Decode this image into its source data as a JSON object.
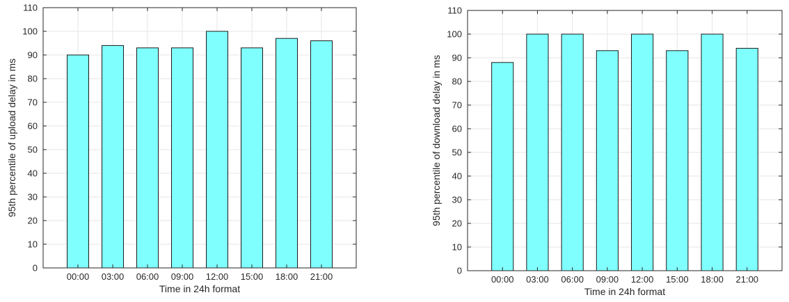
{
  "chart_data": [
    {
      "type": "bar",
      "categories": [
        "00:00",
        "03:00",
        "06:00",
        "09:00",
        "12:00",
        "15:00",
        "18:00",
        "21:00"
      ],
      "values": [
        90,
        94,
        93,
        93,
        100,
        93,
        97,
        96
      ],
      "xlabel": "Time in 24h format",
      "ylabel": "95th percentile of upload delay in ms",
      "ylim": [
        0,
        110
      ],
      "yticks": [
        0,
        10,
        20,
        30,
        40,
        50,
        60,
        70,
        80,
        90,
        100,
        110
      ],
      "grid": true,
      "bar_color": "#80FFFF"
    },
    {
      "type": "bar",
      "categories": [
        "00:00",
        "03:00",
        "06:00",
        "09:00",
        "12:00",
        "15:00",
        "18:00",
        "21:00"
      ],
      "values": [
        88,
        100,
        100,
        93,
        100,
        93,
        100,
        94
      ],
      "xlabel": "Time in 24h format",
      "ylabel": "95th percentile of download delay in ms",
      "ylim": [
        0,
        110
      ],
      "yticks": [
        0,
        10,
        20,
        30,
        40,
        50,
        60,
        70,
        80,
        90,
        100,
        110
      ],
      "grid": true,
      "bar_color": "#80FFFF"
    }
  ]
}
